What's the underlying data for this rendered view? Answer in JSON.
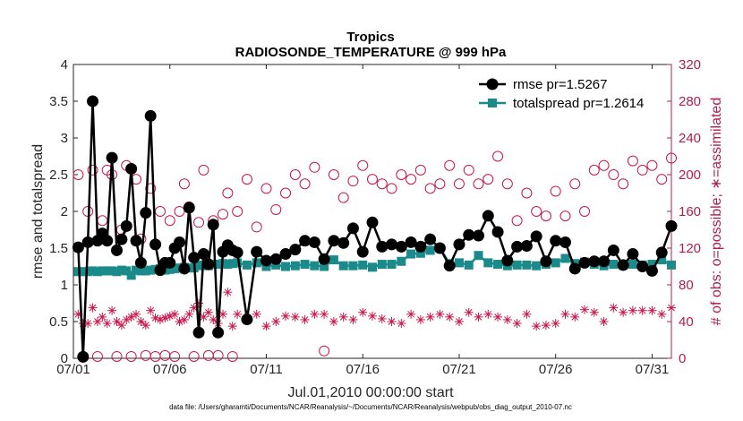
{
  "chart_data": {
    "type": "line",
    "title": "Tropics",
    "subtitle": "RADIOSONDE_TEMPERATURE @ 999 hPa",
    "xlabel": "Jul.01,2010 00:00:00 start",
    "ylabel_left": "rmse and totalspread",
    "ylabel_right": "# of obs: o=possible; ∗=assimilated",
    "footnote": "data file: /Users/gharamti/Documents/NCAR/Reanalysis/~/Documents/NCAR/Reanalysis/webpub/obs_diag_output_2010-07.nc",
    "xlim": [
      1,
      32
    ],
    "ylim_left": [
      0,
      4
    ],
    "ylim_right": [
      0,
      320
    ],
    "x_ticks": [
      1,
      6,
      11,
      16,
      21,
      26,
      31
    ],
    "x_tick_labels": [
      "07/01",
      "07/06",
      "07/11",
      "07/16",
      "07/21",
      "07/26",
      "07/31"
    ],
    "y_ticks_left": [
      "0",
      "0.5",
      "1",
      "1.5",
      "2",
      "2.5",
      "3",
      "3.5",
      "4"
    ],
    "y_ticks_right": [
      "0",
      "40",
      "80",
      "120",
      "160",
      "200",
      "240",
      "280",
      "320"
    ],
    "x": [
      1.25,
      1.5,
      1.75,
      2.0,
      2.25,
      2.5,
      2.75,
      3.0,
      3.25,
      3.5,
      3.75,
      4.0,
      4.25,
      4.5,
      4.75,
      5.0,
      5.25,
      5.5,
      5.75,
      6.0,
      6.25,
      6.5,
      6.75,
      7.0,
      7.25,
      7.5,
      7.75,
      8.0,
      8.25,
      8.5,
      8.75,
      9.0,
      9.25,
      9.5,
      10.0,
      10.5,
      11.0,
      11.5,
      12.0,
      12.5,
      13.0,
      13.5,
      14.0,
      14.5,
      15.0,
      15.5,
      16.0,
      16.5,
      17.0,
      17.5,
      18.0,
      18.5,
      19.0,
      19.5,
      20.0,
      20.5,
      21.0,
      21.5,
      22.0,
      22.5,
      23.0,
      23.5,
      24.0,
      24.5,
      25.0,
      25.5,
      26.0,
      26.5,
      27.0,
      27.5,
      28.0,
      28.5,
      29.0,
      29.5,
      30.0,
      30.5,
      31.0,
      31.5,
      32.0
    ],
    "series": [
      {
        "name": "rmse pr=1.5267",
        "color": "#000000",
        "marker": "filled-circle",
        "values": [
          1.51,
          0.02,
          1.58,
          3.5,
          1.6,
          1.7,
          1.6,
          2.73,
          1.47,
          1.62,
          1.8,
          2.58,
          1.6,
          1.3,
          1.98,
          3.3,
          1.55,
          1.2,
          1.3,
          1.3,
          1.5,
          1.58,
          1.22,
          2.05,
          1.37,
          0.35,
          1.42,
          1.28,
          1.82,
          0.35,
          1.45,
          1.54,
          1.47,
          1.44,
          0.53,
          1.45,
          1.33,
          1.35,
          1.42,
          1.48,
          1.6,
          1.58,
          1.35,
          1.6,
          1.57,
          1.77,
          1.45,
          1.85,
          1.52,
          1.55,
          1.52,
          1.58,
          1.52,
          1.62,
          1.5,
          1.26,
          1.55,
          1.68,
          1.67,
          1.94,
          1.72,
          1.33,
          1.52,
          1.53,
          1.66,
          1.32,
          1.6,
          1.58,
          1.22,
          1.3,
          1.32,
          1.32,
          1.47,
          1.27,
          1.42,
          1.25,
          1.19,
          1.44,
          1.8
        ]
      },
      {
        "name": "totalspread pr=1.2614",
        "color": "#1a8a8a",
        "marker": "filled-square",
        "values": [
          1.18,
          1.18,
          1.18,
          1.19,
          1.18,
          1.19,
          1.19,
          1.19,
          1.18,
          1.2,
          1.19,
          1.13,
          1.2,
          1.19,
          1.19,
          1.2,
          1.21,
          1.22,
          1.2,
          1.21,
          1.22,
          1.23,
          1.24,
          1.23,
          1.23,
          1.26,
          1.27,
          1.26,
          1.28,
          1.28,
          1.29,
          1.28,
          1.29,
          1.3,
          1.27,
          1.3,
          1.25,
          1.27,
          1.25,
          1.26,
          1.28,
          1.26,
          1.25,
          1.34,
          1.26,
          1.26,
          1.27,
          1.24,
          1.28,
          1.28,
          1.32,
          1.42,
          1.43,
          1.47,
          1.5,
          1.29,
          1.3,
          1.27,
          1.4,
          1.3,
          1.28,
          1.26,
          1.27,
          1.27,
          1.26,
          1.28,
          1.3,
          1.36,
          1.29,
          1.31,
          1.28,
          1.26,
          1.28,
          1.27,
          1.28,
          1.27,
          1.28,
          1.34,
          1.27
        ]
      },
      {
        "name": "possible obs",
        "axis": "right",
        "color": "#c8174a",
        "marker": "open-circle",
        "values": [
          200,
          2,
          160,
          205,
          2,
          150,
          205,
          200,
          2,
          140,
          210,
          2,
          195,
          130,
          3,
          185,
          2,
          160,
          3,
          150,
          2,
          160,
          190,
          165,
          2,
          148,
          205,
          3,
          150,
          3,
          157,
          180,
          2,
          160,
          195,
          143,
          185,
          162,
          180,
          200,
          190,
          208,
          8,
          200,
          175,
          193,
          210,
          195,
          190,
          185,
          200,
          195,
          205,
          185,
          190,
          210,
          190,
          205,
          190,
          195,
          220,
          190,
          150,
          180,
          160,
          155,
          182,
          155,
          190,
          160,
          205,
          210,
          200,
          190,
          215,
          205,
          210,
          195,
          218
        ]
      },
      {
        "name": "assimilated obs",
        "axis": "right",
        "color": "#c8174a",
        "marker": "asterisk",
        "values": [
          48,
          38,
          38,
          55,
          40,
          45,
          38,
          52,
          40,
          36,
          42,
          45,
          48,
          40,
          36,
          52,
          44,
          42,
          44,
          46,
          48,
          40,
          42,
          48,
          55,
          60,
          45,
          50,
          42,
          38,
          48,
          72,
          35,
          48,
          42,
          48,
          35,
          40,
          46,
          45,
          42,
          48,
          48,
          40,
          45,
          42,
          50,
          46,
          43,
          40,
          38,
          48,
          42,
          45,
          48,
          45,
          40,
          50,
          45,
          48,
          45,
          42,
          38,
          48,
          35,
          36,
          38,
          48,
          45,
          53,
          50,
          40,
          55,
          50,
          52,
          52,
          52,
          48,
          55
        ]
      }
    ]
  }
}
